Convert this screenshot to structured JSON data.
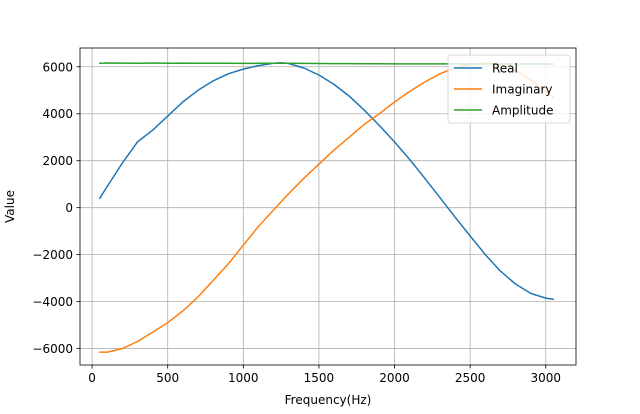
{
  "chart_data": {
    "type": "line",
    "title": "",
    "xlabel": "Frequency(Hz)",
    "ylabel": "Value",
    "xlim": [
      -80,
      3200
    ],
    "ylim": [
      -6700,
      6800
    ],
    "xticks": [
      0,
      500,
      1000,
      1500,
      2000,
      2500,
      3000
    ],
    "yticks": [
      -6000,
      -4000,
      -2000,
      0,
      2000,
      4000,
      6000
    ],
    "xtick_labels": [
      "0",
      "500",
      "1000",
      "1500",
      "2000",
      "2500",
      "3000"
    ],
    "ytick_labels": [
      "−6000",
      "−4000",
      "−2000",
      "0",
      "2000",
      "4000",
      "6000"
    ],
    "grid": true,
    "legend_position": "upper-right",
    "colors": {
      "real": "#1f77b4",
      "imaginary": "#ff7f0e",
      "amplitude": "#2ca02c"
    },
    "x": [
      50,
      100,
      200,
      300,
      400,
      500,
      600,
      700,
      800,
      900,
      1000,
      1100,
      1200,
      1250,
      1300,
      1400,
      1500,
      1600,
      1700,
      1800,
      1900,
      2000,
      2100,
      2200,
      2300,
      2400,
      2500,
      2600,
      2700,
      2800,
      2900,
      3000,
      3050
    ],
    "series": [
      {
        "name": "Real",
        "color_key": "real",
        "values": [
          400,
          900,
          1900,
          2800,
          3300,
          3900,
          4500,
          5000,
          5400,
          5700,
          5900,
          6050,
          6150,
          6170,
          6140,
          5950,
          5650,
          5250,
          4750,
          4150,
          3500,
          2800,
          2050,
          1250,
          430,
          -400,
          -1200,
          -2000,
          -2700,
          -3250,
          -3650,
          -3850,
          -3900
        ]
      },
      {
        "name": "Imaginary",
        "color_key": "imaginary",
        "values": [
          -6150,
          -6150,
          -6000,
          -5700,
          -5300,
          -4900,
          -4400,
          -3800,
          -3100,
          -2400,
          -1600,
          -800,
          -100,
          250,
          600,
          1250,
          1850,
          2450,
          3000,
          3550,
          4000,
          4500,
          4950,
          5350,
          5700,
          5950,
          6100,
          6150,
          6100,
          5850,
          5450,
          4950,
          4700
        ]
      },
      {
        "name": "Amplitude",
        "color_key": "amplitude",
        "values": [
          6150,
          6160,
          6155,
          6150,
          6160,
          6150,
          6155,
          6150,
          6150,
          6150,
          6145,
          6150,
          6150,
          6150,
          6150,
          6145,
          6140,
          6135,
          6135,
          6130,
          6130,
          6125,
          6125,
          6125,
          6125,
          6125,
          6120,
          6120,
          6120,
          6120,
          6120,
          6120,
          6120
        ]
      }
    ]
  }
}
